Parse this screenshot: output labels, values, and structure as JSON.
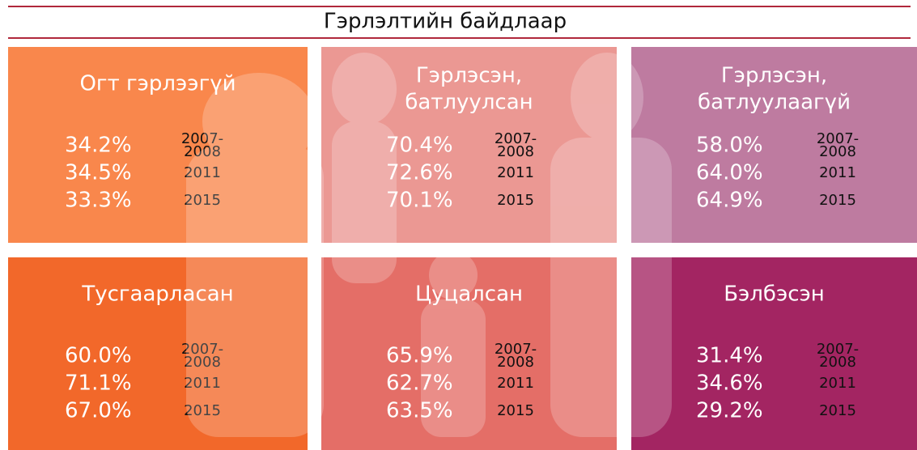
{
  "header": {
    "title": "Гэрлэлтийн байдлаар"
  },
  "panels": [
    {
      "title": [
        "Огт гэрлээгүй"
      ],
      "color": "#f9874c",
      "rows": [
        {
          "value": "34.2%",
          "year": [
            "2007-",
            "2008"
          ]
        },
        {
          "value": "34.5%",
          "year": [
            "2011"
          ]
        },
        {
          "value": "33.3%",
          "year": [
            "2015"
          ]
        }
      ]
    },
    {
      "title": [
        "Гэрлэсэн,",
        "батлуулсан"
      ],
      "color": "#eb9893",
      "rows": [
        {
          "value": "70.4%",
          "year": [
            "2007-",
            "2008"
          ]
        },
        {
          "value": "72.6%",
          "year": [
            "2011"
          ]
        },
        {
          "value": "70.1%",
          "year": [
            "2015"
          ]
        }
      ]
    },
    {
      "title": [
        "Гэрлэсэн,",
        "батлуулаагүй"
      ],
      "color": "#be7ba0",
      "rows": [
        {
          "value": "58.0%",
          "year": [
            "2007-",
            "2008"
          ]
        },
        {
          "value": "64.0%",
          "year": [
            "2011"
          ]
        },
        {
          "value": "64.9%",
          "year": [
            "2015"
          ]
        }
      ]
    },
    {
      "title": [
        "Тусгаарласан"
      ],
      "color": "#f2682a",
      "rows": [
        {
          "value": "60.0%",
          "year": [
            "2007-",
            "2008"
          ]
        },
        {
          "value": "71.1%",
          "year": [
            "2011"
          ]
        },
        {
          "value": "67.0%",
          "year": [
            "2015"
          ]
        }
      ]
    },
    {
      "title": [
        "Цуцалсан"
      ],
      "color": "#e46e67",
      "rows": [
        {
          "value": "65.9%",
          "year": [
            "2007-",
            "2008"
          ]
        },
        {
          "value": "62.7%",
          "year": [
            "2011"
          ]
        },
        {
          "value": "63.5%",
          "year": [
            "2015"
          ]
        }
      ]
    },
    {
      "title": [
        "Бэлбэсэн"
      ],
      "color": "#a32562",
      "rows": [
        {
          "value": "31.4%",
          "year": [
            "2007-",
            "2008"
          ]
        },
        {
          "value": "34.6%",
          "year": [
            "2011"
          ]
        },
        {
          "value": "29.2%",
          "year": [
            "2015"
          ]
        }
      ]
    }
  ]
}
